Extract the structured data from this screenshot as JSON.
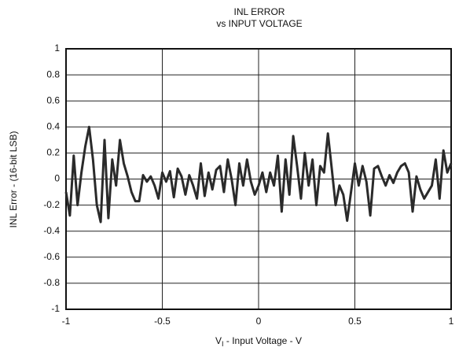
{
  "chart_data": {
    "type": "line",
    "title": [
      "INL ERROR",
      "vs INPUT VOLTAGE"
    ],
    "x_label": [
      "V",
      "I",
      " - Input Voltage - V"
    ],
    "y_label": "INL Error - (16-bit LSB)",
    "xlim": [
      -1,
      1
    ],
    "ylim": [
      -1,
      1
    ],
    "xticks": [
      -1,
      -0.5,
      0,
      0.5,
      1
    ],
    "yticks": [
      1,
      0.8,
      0.6,
      0.4,
      0.2,
      0,
      -0.2,
      -0.4,
      -0.6,
      -0.8,
      -1
    ],
    "grid": true,
    "color": "#2a2a2a",
    "x": [
      -1,
      -0.98,
      -0.96,
      -0.94,
      -0.92,
      -0.9,
      -0.88,
      -0.86,
      -0.84,
      -0.82,
      -0.8,
      -0.78,
      -0.76,
      -0.74,
      -0.72,
      -0.7,
      -0.68,
      -0.66,
      -0.64,
      -0.62,
      -0.6,
      -0.58,
      -0.56,
      -0.54,
      -0.52,
      -0.5,
      -0.48,
      -0.46,
      -0.44,
      -0.42,
      -0.4,
      -0.38,
      -0.36,
      -0.34,
      -0.32,
      -0.3,
      -0.28,
      -0.26,
      -0.24,
      -0.22,
      -0.2,
      -0.18,
      -0.16,
      -0.14,
      -0.12,
      -0.1,
      -0.08,
      -0.06,
      -0.04,
      -0.02,
      0,
      0.02,
      0.04,
      0.06,
      0.08,
      0.1,
      0.12,
      0.14,
      0.16,
      0.18,
      0.2,
      0.22,
      0.24,
      0.26,
      0.28,
      0.3,
      0.32,
      0.34,
      0.36,
      0.38,
      0.4,
      0.42,
      0.44,
      0.46,
      0.48,
      0.5,
      0.52,
      0.54,
      0.56,
      0.58,
      0.6,
      0.62,
      0.64,
      0.66,
      0.68,
      0.7,
      0.72,
      0.74,
      0.76,
      0.78,
      0.8,
      0.82,
      0.84,
      0.86,
      0.88,
      0.9,
      0.92,
      0.94,
      0.96,
      0.98,
      1
    ],
    "values": [
      -0.1,
      -0.28,
      0.18,
      -0.2,
      0.05,
      0.25,
      0.4,
      0.15,
      -0.2,
      -0.33,
      0.3,
      -0.3,
      0.15,
      -0.05,
      0.3,
      0.12,
      0.02,
      -0.1,
      -0.17,
      -0.17,
      0.03,
      -0.02,
      0.02,
      -0.05,
      -0.15,
      0.05,
      -0.02,
      0.06,
      -0.14,
      0.08,
      0.02,
      -0.12,
      0.03,
      -0.05,
      -0.15,
      0.12,
      -0.13,
      0.05,
      -0.08,
      0.07,
      0.1,
      -0.1,
      0.15,
      0,
      -0.2,
      0.12,
      -0.05,
      0.15,
      -0.02,
      -0.12,
      -0.05,
      0.05,
      -0.1,
      0.05,
      -0.05,
      0.18,
      -0.25,
      0.15,
      -0.12,
      0.33,
      0.1,
      -0.15,
      0.2,
      -0.05,
      0.15,
      -0.2,
      0.1,
      0.05,
      0.35,
      0.08,
      -0.2,
      -0.05,
      -0.12,
      -0.32,
      -0.1,
      0.12,
      -0.05,
      0.1,
      -0.02,
      -0.28,
      0.08,
      0.1,
      0.02,
      -0.05,
      0.03,
      -0.03,
      0.05,
      0.1,
      0.12,
      0.05,
      -0.25,
      0.02,
      -0.08,
      -0.15,
      -0.1,
      -0.05,
      0.15,
      -0.15,
      0.22,
      0.05,
      0.12
    ]
  }
}
